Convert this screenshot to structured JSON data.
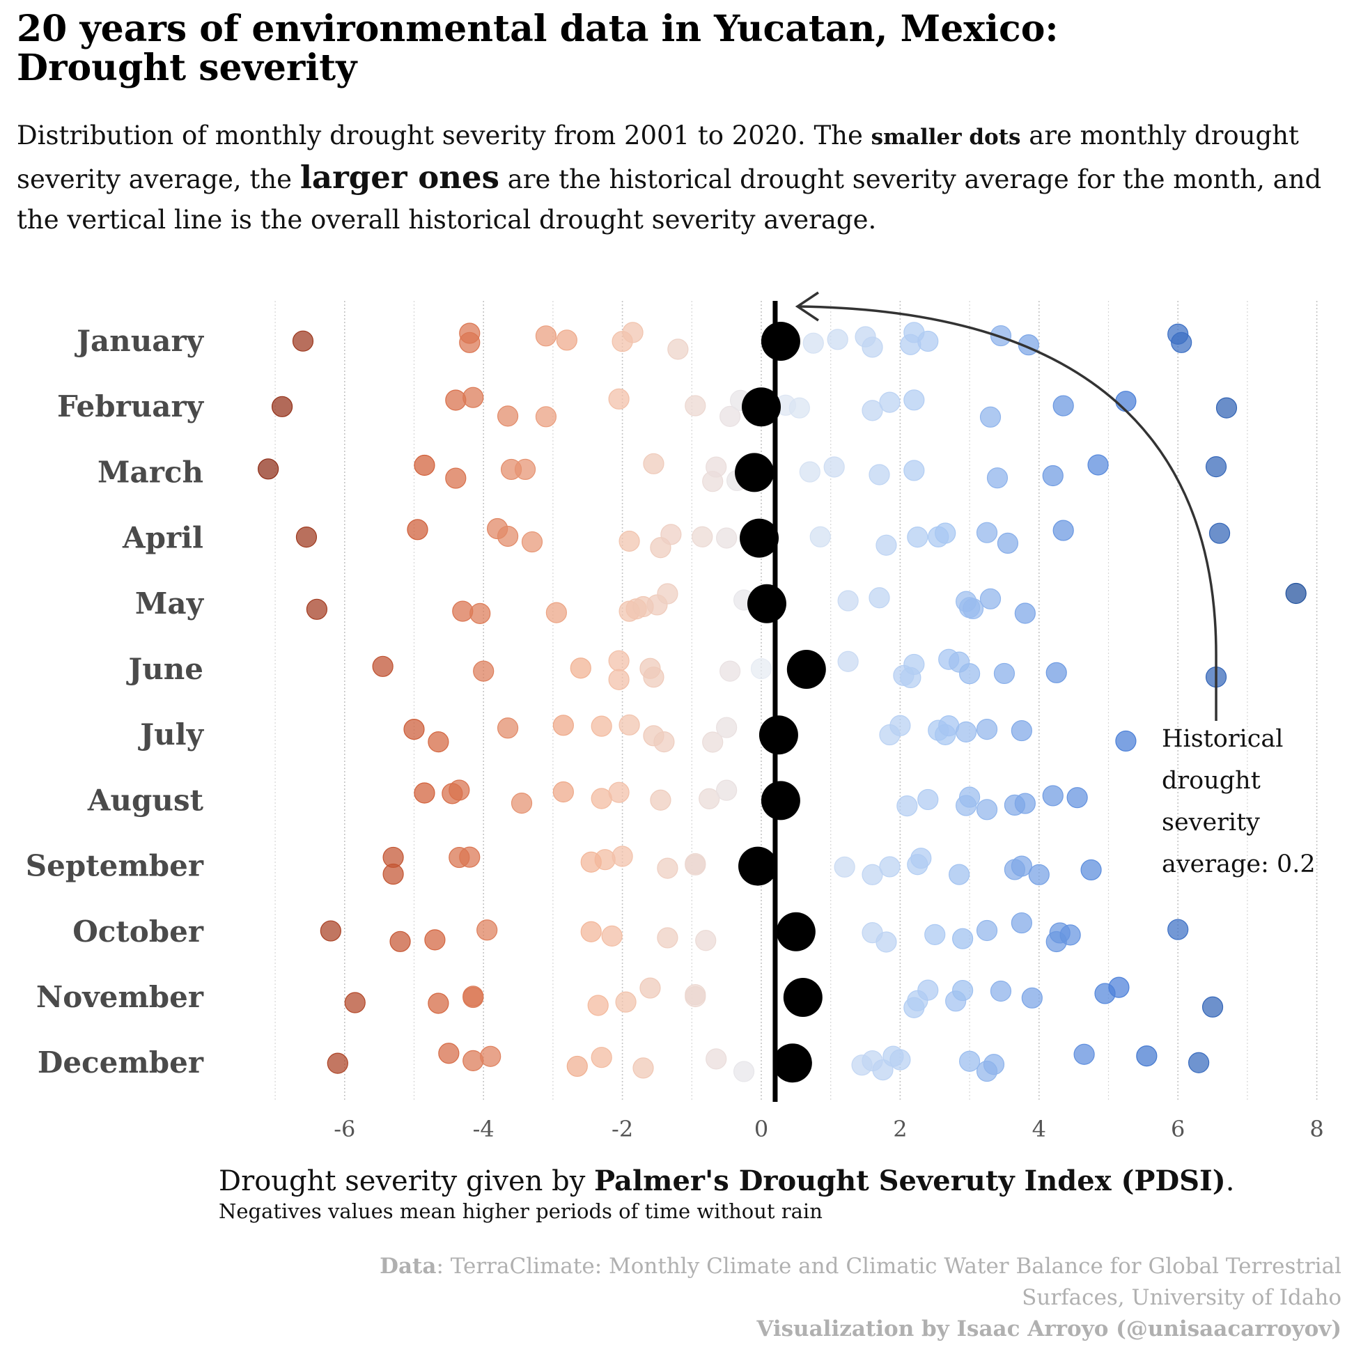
{
  "title_line1": "20 years of environmental data in Yucatan, Mexico:",
  "title_line2": "Drought severity",
  "subtitle": {
    "p1": "Distribution of monthly drought severity from 2001 to 2020. The ",
    "small_dots": "smaller dots",
    "p2": " are monthly drought severity average, the ",
    "larger_ones": "larger ones",
    "p3": " are the historical drought severity average for the month, and the vertical line is the overall historical drought severity average."
  },
  "x_caption": {
    "prefix": "Drought severity given by ",
    "bold": "Palmer's Drought Severuty Index (PDSI)",
    "suffix": ".",
    "note": "Negatives values mean higher periods of time without rain"
  },
  "credits": {
    "data_label": "Data",
    "data_line1": ": TerraClimate: Monthly Climate and Climatic Water Balance for Global Terrestrial",
    "data_line2": "Surfaces, University of Idaho",
    "viz": "Visualization by Isaac Arroyo (@unisaacarroyov)"
  },
  "colors": {
    "darkest_negative": "#8b2a14",
    "strong_negative": "#d2603a",
    "light_negative": "#f4b89a",
    "lightest_neutral": "#e6ebf3",
    "light_positive": "#a9c8f3",
    "strong_positive": "#4a7fd8",
    "darkest_positive": "#1f4f9a",
    "mean_dot": "#000000"
  },
  "chart_data": {
    "type": "scatter",
    "xlim": [
      -7.3,
      8
    ],
    "xticks": [
      -6,
      -4,
      -2,
      0,
      2,
      4,
      6,
      8
    ],
    "xtick_labels": [
      "-6",
      "-4",
      "-2",
      "0",
      "2",
      "4",
      "6",
      "8"
    ],
    "overall_mean": 0.2,
    "annotation": "Historical drought severity average: 0.2",
    "annotation_lines": [
      "Historical",
      "drought",
      "severity",
      "average: 0.2"
    ],
    "months": [
      {
        "name": "January",
        "mean": 0.28,
        "values": [
          -6.6,
          -4.2,
          -4.2,
          -3.1,
          -2.8,
          -2.0,
          -1.85,
          -1.2,
          0.75,
          1.1,
          1.5,
          1.6,
          2.15,
          2.2,
          2.4,
          3.45,
          3.85,
          6.0,
          6.05
        ]
      },
      {
        "name": "February",
        "mean": 0.0,
        "values": [
          -6.9,
          -4.4,
          -4.15,
          -3.65,
          -3.1,
          -2.05,
          -0.95,
          -0.45,
          -0.3,
          0.35,
          0.55,
          1.6,
          1.85,
          2.2,
          3.3,
          4.35,
          5.25,
          6.7
        ]
      },
      {
        "name": "March",
        "mean": -0.1,
        "values": [
          -7.1,
          -4.85,
          -4.4,
          -3.6,
          -3.4,
          -1.55,
          -0.7,
          -0.65,
          -0.35,
          0.7,
          1.05,
          1.7,
          2.2,
          3.4,
          4.2,
          4.85,
          6.55
        ]
      },
      {
        "name": "April",
        "mean": -0.03,
        "values": [
          -6.55,
          -4.95,
          -3.8,
          -3.65,
          -3.3,
          -1.9,
          -1.45,
          -1.3,
          -0.85,
          -0.5,
          0.85,
          1.8,
          2.25,
          2.55,
          2.65,
          3.25,
          3.55,
          4.35,
          6.6
        ]
      },
      {
        "name": "May",
        "mean": 0.08,
        "values": [
          -6.4,
          -4.3,
          -4.05,
          -2.95,
          -1.9,
          -1.8,
          -1.7,
          -1.5,
          -1.35,
          -0.25,
          1.25,
          1.7,
          2.95,
          3.0,
          3.05,
          3.3,
          3.8,
          7.7
        ]
      },
      {
        "name": "June",
        "mean": 0.65,
        "values": [
          -5.45,
          -4.0,
          -2.6,
          -2.05,
          -2.05,
          -1.6,
          -1.55,
          -0.45,
          0.0,
          1.25,
          2.05,
          2.15,
          2.2,
          2.7,
          2.85,
          3.0,
          3.5,
          4.25,
          6.55
        ]
      },
      {
        "name": "July",
        "mean": 0.25,
        "values": [
          -5.0,
          -4.65,
          -3.65,
          -2.85,
          -2.3,
          -1.9,
          -1.55,
          -1.4,
          -0.7,
          -0.5,
          1.85,
          2.0,
          2.55,
          2.65,
          2.7,
          2.95,
          3.25,
          3.75,
          5.25
        ]
      },
      {
        "name": "August",
        "mean": 0.28,
        "values": [
          -4.85,
          -4.45,
          -4.35,
          -3.45,
          -2.85,
          -2.3,
          -2.05,
          -1.45,
          -0.75,
          -0.5,
          2.1,
          2.4,
          2.95,
          3.0,
          3.25,
          3.65,
          3.8,
          4.2,
          4.55
        ]
      },
      {
        "name": "September",
        "mean": -0.05,
        "values": [
          -5.3,
          -5.3,
          -4.35,
          -4.2,
          -2.25,
          -2.45,
          -2.0,
          -1.35,
          -0.95,
          -0.95,
          1.2,
          1.6,
          1.85,
          2.25,
          2.3,
          2.85,
          3.65,
          3.75,
          4.0,
          4.75
        ]
      },
      {
        "name": "October",
        "mean": 0.5,
        "values": [
          -6.2,
          -5.2,
          -4.7,
          -3.95,
          -2.45,
          -2.15,
          -1.35,
          -0.8,
          1.6,
          1.8,
          2.5,
          2.9,
          3.25,
          3.75,
          4.25,
          4.3,
          4.45,
          6.0
        ]
      },
      {
        "name": "November",
        "mean": 0.6,
        "values": [
          -5.85,
          -4.65,
          -4.15,
          -4.15,
          -2.35,
          -1.95,
          -1.6,
          -0.95,
          -0.95,
          2.2,
          2.25,
          2.4,
          2.8,
          2.9,
          3.45,
          3.9,
          4.95,
          5.15,
          6.5
        ]
      },
      {
        "name": "December",
        "mean": 0.45,
        "values": [
          -6.1,
          -4.5,
          -4.15,
          -3.9,
          -2.65,
          -2.3,
          -1.7,
          -0.65,
          -0.25,
          1.45,
          1.6,
          1.75,
          1.9,
          2.0,
          3.0,
          3.25,
          3.35,
          4.65,
          5.55,
          6.3
        ]
      }
    ]
  }
}
